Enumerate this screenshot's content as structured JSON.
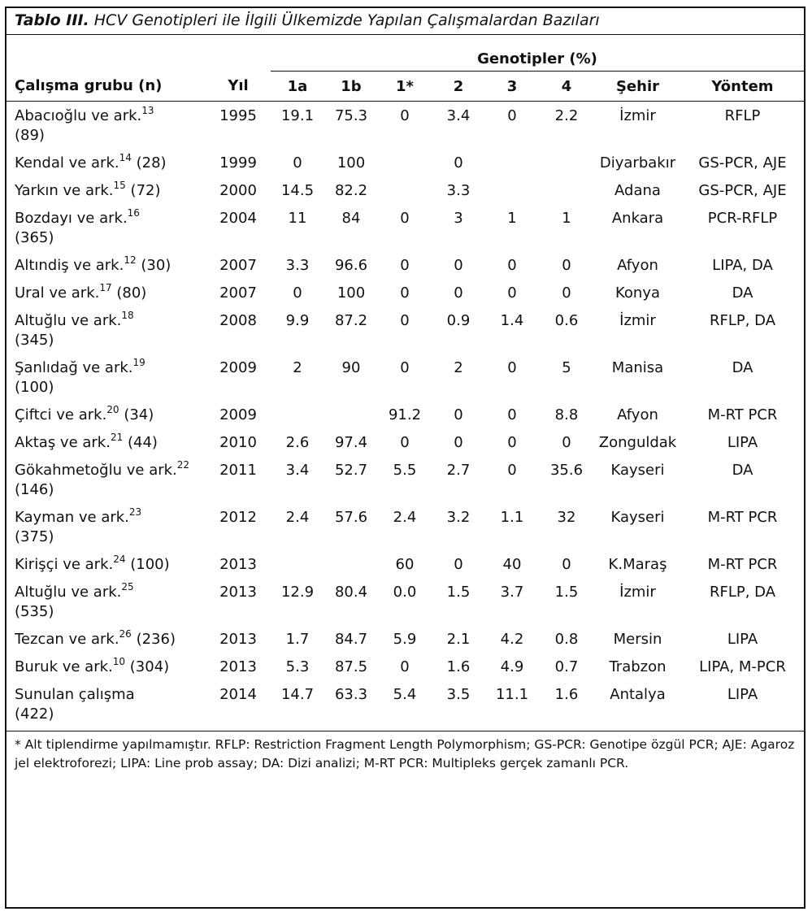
{
  "caption": {
    "label": "Tablo III.",
    "text": " HCV Genotipleri ile İlgili Ülkemizde Yapılan Çalışmalardan Bazıları"
  },
  "header": {
    "group": "Genotipler (%)",
    "columns": [
      "Çalışma grubu (n)",
      "Yıl",
      "1a",
      "1b",
      "1*",
      "2",
      "3",
      "4",
      "Şehir",
      "Yöntem"
    ]
  },
  "rows": [
    {
      "name": "Abacıoğlu ve ark.",
      "ref": "13",
      "n": "(89)",
      "break": true,
      "yil": "1995",
      "g1a": "19.1",
      "g1b": "75.3",
      "g1s": "0",
      "g2": "3.4",
      "g3": "0",
      "g4": "2.2",
      "city": "İzmir",
      "method": "RFLP"
    },
    {
      "name": "Kendal ve ark.",
      "ref": "14",
      "n": "(28)",
      "break": false,
      "yil": "1999",
      "g1a": "0",
      "g1b": "100",
      "g1s": "",
      "g2": "0",
      "g3": "",
      "g4": "",
      "city": "Diyarbakır",
      "method": "GS-PCR, AJE"
    },
    {
      "name": "Yarkın ve ark.",
      "ref": "15",
      "n": "(72)",
      "break": false,
      "yil": "2000",
      "g1a": "14.5",
      "g1b": "82.2",
      "g1s": "",
      "g2": "3.3",
      "g3": "",
      "g4": "",
      "city": "Adana",
      "method": "GS-PCR, AJE"
    },
    {
      "name": "Bozdayı ve ark.",
      "ref": "16",
      "n": "(365)",
      "break": true,
      "yil": "2004",
      "g1a": "11",
      "g1b": "84",
      "g1s": "0",
      "g2": "3",
      "g3": "1",
      "g4": "1",
      "city": "Ankara",
      "method": "PCR-RFLP"
    },
    {
      "name": "Altındiş ve ark.",
      "ref": "12",
      "n": "(30)",
      "break": false,
      "yil": "2007",
      "g1a": "3.3",
      "g1b": "96.6",
      "g1s": "0",
      "g2": "0",
      "g3": "0",
      "g4": "0",
      "city": "Afyon",
      "method": "LIPA, DA"
    },
    {
      "name": "Ural ve ark.",
      "ref": "17",
      "n": "(80)",
      "break": false,
      "yil": "2007",
      "g1a": "0",
      "g1b": "100",
      "g1s": "0",
      "g2": "0",
      "g3": "0",
      "g4": "0",
      "city": "Konya",
      "method": "DA"
    },
    {
      "name": "Altuğlu ve ark.",
      "ref": "18",
      "n": "(345)",
      "break": true,
      "yil": "2008",
      "g1a": "9.9",
      "g1b": "87.2",
      "g1s": "0",
      "g2": "0.9",
      "g3": "1.4",
      "g4": "0.6",
      "city": "İzmir",
      "method": "RFLP, DA"
    },
    {
      "name": "Şanlıdağ ve ark.",
      "ref": "19",
      "n": "(100)",
      "break": true,
      "yil": "2009",
      "g1a": "2",
      "g1b": "90",
      "g1s": "0",
      "g2": "2",
      "g3": "0",
      "g4": "5",
      "city": "Manisa",
      "method": "DA"
    },
    {
      "name": "Çiftci ve ark.",
      "ref": "20",
      "n": "(34)",
      "break": false,
      "yil": "2009",
      "g1a": "",
      "g1b": "",
      "g1s": "91.2",
      "g2": "0",
      "g3": "0",
      "g4": "8.8",
      "city": "Afyon",
      "method": "M-RT PCR"
    },
    {
      "name": "Aktaş ve ark.",
      "ref": "21",
      "n": "(44)",
      "break": false,
      "yil": "2010",
      "g1a": "2.6",
      "g1b": "97.4",
      "g1s": "0",
      "g2": "0",
      "g3": "0",
      "g4": "0",
      "city": "Zonguldak",
      "method": "LIPA"
    },
    {
      "name": "Gökahmetoğlu ve ark.",
      "ref": "22",
      "n": "(146)",
      "break": false,
      "yil": "2011",
      "g1a": "3.4",
      "g1b": "52.7",
      "g1s": "5.5",
      "g2": "2.7",
      "g3": "0",
      "g4": "35.6",
      "city": "Kayseri",
      "method": "DA"
    },
    {
      "name": "Kayman ve ark.",
      "ref": "23",
      "n": "(375)",
      "break": true,
      "yil": "2012",
      "g1a": "2.4",
      "g1b": "57.6",
      "g1s": "2.4",
      "g2": "3.2",
      "g3": "1.1",
      "g4": "32",
      "city": "Kayseri",
      "method": "M-RT PCR"
    },
    {
      "name": "Kirişçi ve ark.",
      "ref": "24",
      "n": "(100)",
      "break": false,
      "yil": "2013",
      "g1a": "",
      "g1b": "",
      "g1s": "60",
      "g2": "0",
      "g3": "40",
      "g4": "0",
      "city": "K.Maraş",
      "method": "M-RT PCR"
    },
    {
      "name": "Altuğlu ve ark.",
      "ref": "25",
      "n": "(535)",
      "break": true,
      "yil": "2013",
      "g1a": "12.9",
      "g1b": "80.4",
      "g1s": "0.0",
      "g2": "1.5",
      "g3": "3.7",
      "g4": "1.5",
      "city": "İzmir",
      "method": "RFLP, DA"
    },
    {
      "name": "Tezcan ve ark.",
      "ref": "26",
      "n": "(236)",
      "break": false,
      "yil": "2013",
      "g1a": "1.7",
      "g1b": "84.7",
      "g1s": "5.9",
      "g2": "2.1",
      "g3": "4.2",
      "g4": "0.8",
      "city": "Mersin",
      "method": "LIPA"
    },
    {
      "name": "Buruk ve ark.",
      "ref": "10",
      "n": "(304)",
      "break": false,
      "yil": "2013",
      "g1a": "5.3",
      "g1b": "87.5",
      "g1s": "0",
      "g2": "1.6",
      "g3": "4.9",
      "g4": "0.7",
      "city": "Trabzon",
      "method": "LIPA, M-PCR"
    },
    {
      "name": "Sunulan çalışma",
      "ref": "",
      "n": "(422)",
      "break": true,
      "yil": "2014",
      "g1a": "14.7",
      "g1b": "63.3",
      "g1s": "5.4",
      "g2": "3.5",
      "g3": "11.1",
      "g4": "1.6",
      "city": "Antalya",
      "method": "LIPA"
    }
  ],
  "footnote": "* Alt tiplendirme yapılmamıştır. RFLP: Restriction Fragment Length Polymorphism; GS-PCR: Genotipe özgül PCR; AJE: Agaroz jel elektroforezi; LIPA: Line prob assay; DA: Dizi analizi; M-RT PCR: Multipleks gerçek zamanlı PCR."
}
